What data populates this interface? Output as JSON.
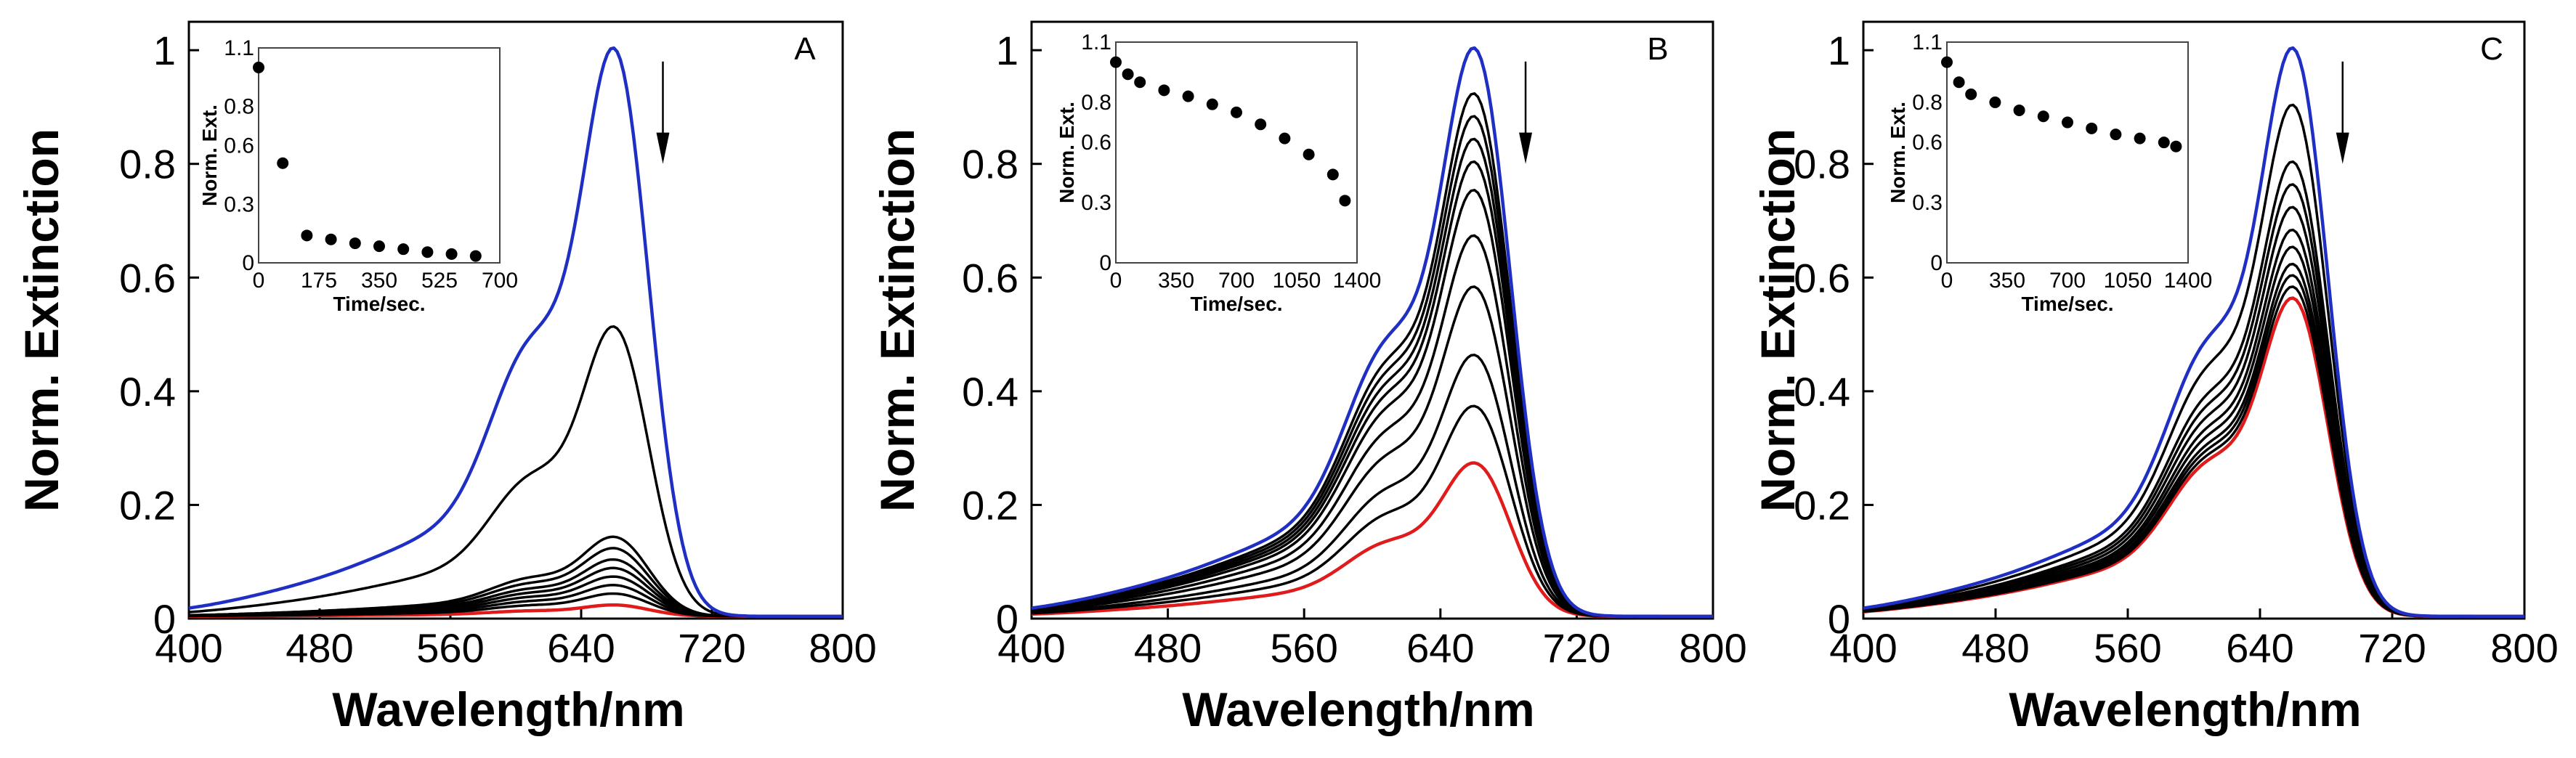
{
  "chart_data": [
    {
      "type": "line",
      "panel_label": "A",
      "xlabel": "Wavelength/nm",
      "ylabel": "Norm. Extinction",
      "xlim": [
        400,
        800
      ],
      "ylim": [
        0,
        1.05
      ],
      "xticks": [
        "400",
        "480",
        "560",
        "640",
        "720",
        "800"
      ],
      "yticks": [
        "0",
        "0.2",
        "0.4",
        "0.6",
        "0.8",
        "1"
      ],
      "arrow_wavelength": 690,
      "arrow_direction": "down",
      "colors": {
        "initial": "#1f2fc4",
        "intermediate": "#000000",
        "final": "#e01b1b"
      },
      "series_peak_heights": [
        1.0,
        0.51,
        0.14,
        0.12,
        0.1,
        0.085,
        0.07,
        0.055,
        0.04,
        0.02
      ],
      "inset": {
        "type": "scatter",
        "xlabel": "Time/sec.",
        "ylabel": "Norm. Ext.",
        "xlim": [
          0,
          700
        ],
        "ylim": [
          0,
          1.1
        ],
        "xticks": [
          "0",
          "175",
          "350",
          "525",
          "700"
        ],
        "yticks": [
          "0",
          "0.3",
          "0.6",
          "0.8",
          "1.1"
        ],
        "ytick_values": [
          0,
          0.3,
          0.6,
          0.8,
          1.1
        ],
        "x": [
          0,
          70,
          140,
          210,
          280,
          350,
          420,
          490,
          560,
          630
        ],
        "y": [
          1.0,
          0.51,
          0.14,
          0.12,
          0.1,
          0.085,
          0.07,
          0.055,
          0.045,
          0.035
        ]
      }
    },
    {
      "type": "line",
      "panel_label": "B",
      "xlabel": "Wavelength/nm",
      "ylabel": "Norm. Extinction",
      "xlim": [
        400,
        800
      ],
      "ylim": [
        0,
        1.05
      ],
      "xticks": [
        "400",
        "480",
        "560",
        "640",
        "720",
        "800"
      ],
      "yticks": [
        "0",
        "0.2",
        "0.4",
        "0.6",
        "0.8",
        "1"
      ],
      "arrow_wavelength": 690,
      "arrow_direction": "down",
      "colors": {
        "initial": "#1f2fc4",
        "intermediate": "#000000",
        "final": "#e01b1b"
      },
      "series_peak_heights": [
        1.0,
        0.92,
        0.88,
        0.84,
        0.8,
        0.75,
        0.67,
        0.58,
        0.46,
        0.37,
        0.27
      ],
      "inset": {
        "type": "scatter",
        "xlabel": "Time/sec.",
        "ylabel": "Norm. Ext.",
        "xlim": [
          0,
          1400
        ],
        "ylim": [
          0,
          1.1
        ],
        "xticks": [
          "0",
          "350",
          "700",
          "1050",
          "1400"
        ],
        "yticks": [
          "0",
          "0.3",
          "0.6",
          "0.8",
          "1.1"
        ],
        "ytick_values": [
          0,
          0.3,
          0.6,
          0.8,
          1.1
        ],
        "x": [
          0,
          70,
          140,
          280,
          420,
          560,
          700,
          840,
          980,
          1120,
          1260,
          1330
        ],
        "y": [
          1.0,
          0.94,
          0.9,
          0.86,
          0.83,
          0.79,
          0.75,
          0.69,
          0.62,
          0.54,
          0.44,
          0.31
        ]
      }
    },
    {
      "type": "line",
      "panel_label": "C",
      "xlabel": "Wavelength/nm",
      "ylabel": "Norm. Extinction",
      "xlim": [
        400,
        800
      ],
      "ylim": [
        0,
        1.05
      ],
      "xticks": [
        "400",
        "480",
        "560",
        "640",
        "720",
        "800"
      ],
      "yticks": [
        "0",
        "0.2",
        "0.4",
        "0.6",
        "0.8",
        "1"
      ],
      "arrow_wavelength": 690,
      "arrow_direction": "down",
      "colors": {
        "initial": "#1f2fc4",
        "intermediate": "#000000",
        "final": "#e01b1b"
      },
      "series_peak_heights": [
        1.0,
        0.9,
        0.8,
        0.76,
        0.72,
        0.68,
        0.65,
        0.62,
        0.6,
        0.58,
        0.56
      ],
      "inset": {
        "type": "scatter",
        "xlabel": "Time/sec.",
        "ylabel": "Norm. Ext.",
        "xlim": [
          0,
          1400
        ],
        "ylim": [
          0,
          1.1
        ],
        "xticks": [
          "0",
          "350",
          "700",
          "1050",
          "1400"
        ],
        "yticks": [
          "0",
          "0.3",
          "0.6",
          "0.8",
          "1.1"
        ],
        "ytick_values": [
          0,
          0.3,
          0.6,
          0.8,
          1.1
        ],
        "x": [
          0,
          70,
          140,
          280,
          420,
          560,
          700,
          840,
          980,
          1120,
          1260,
          1330
        ],
        "y": [
          1.0,
          0.9,
          0.84,
          0.8,
          0.76,
          0.73,
          0.7,
          0.67,
          0.64,
          0.62,
          0.6,
          0.58
        ]
      }
    }
  ]
}
